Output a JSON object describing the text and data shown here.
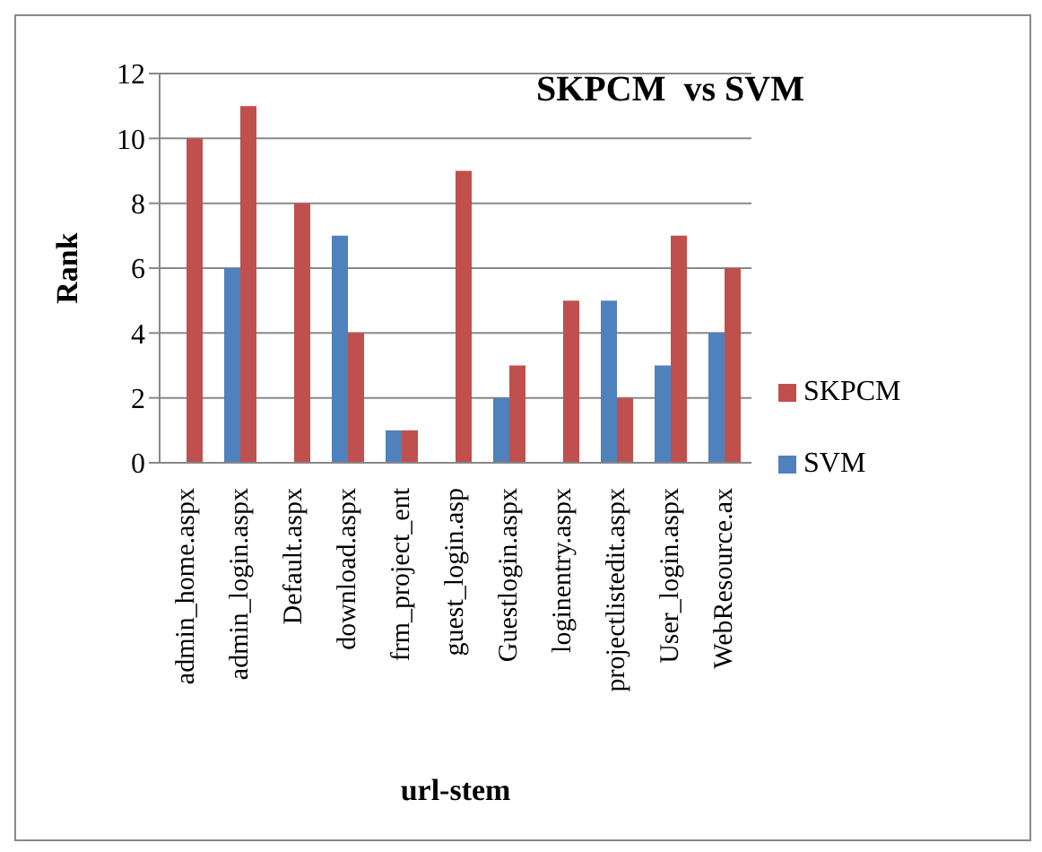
{
  "chart_data": {
    "type": "bar",
    "title": "SKPCM  vs SVM",
    "xlabel": "url-stem",
    "ylabel": "Rank",
    "categories": [
      "admin_home.aspx",
      "admin_login.aspx",
      "Default.aspx",
      "download.aspx",
      "frm_project_ent",
      "guest_login.asp",
      "Guestlogin.aspx",
      "loginentry.aspx",
      "projectlistedit.aspx",
      "User_login.aspx",
      "WebResource.ax"
    ],
    "series": [
      {
        "name": "SVM",
        "color": "#4f81bd",
        "values": [
          0,
          6,
          0,
          7,
          1,
          0,
          2,
          0,
          5,
          3,
          4
        ]
      },
      {
        "name": "SKPCM",
        "color": "#c0504d",
        "values": [
          10,
          11,
          8,
          4,
          1,
          9,
          3,
          5,
          2,
          7,
          6
        ]
      }
    ],
    "ylim": [
      0,
      12
    ],
    "yticks": [
      0,
      2,
      4,
      6,
      8,
      10,
      12
    ],
    "grid": "y",
    "legend": "right"
  }
}
